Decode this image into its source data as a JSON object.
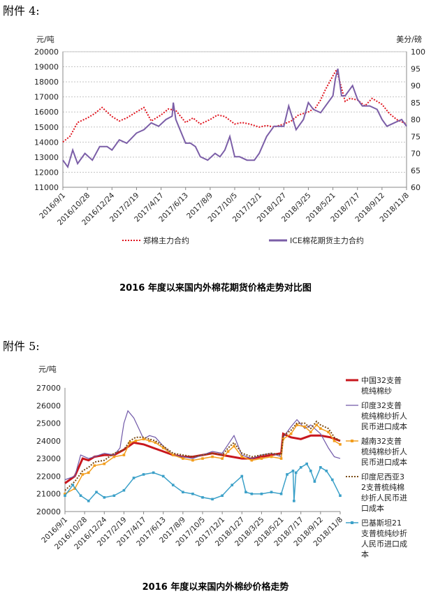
{
  "attachment4": {
    "label": "附件 4:",
    "caption": "2016 年度以来国内外棉花期货价格走势对比图"
  },
  "attachment5": {
    "label": "附件 5:",
    "caption": "2016 年度以来国内外棉纱价格走势"
  },
  "chart_data": [
    {
      "type": "line",
      "y_unit_left": "元/吨",
      "y_unit_right": "美分/磅",
      "ylim_left": [
        11000,
        20000
      ],
      "yticks_left": [
        11000,
        12000,
        13000,
        14000,
        15000,
        16000,
        17000,
        18000,
        19000,
        20000
      ],
      "ylim_right": [
        60,
        100
      ],
      "yticks_right": [
        60,
        65,
        70,
        75,
        80,
        85,
        90,
        95,
        100
      ],
      "categories": [
        "2016/9/1",
        "2016/10/28",
        "2016/12/24",
        "2017/2/19",
        "2017/4/17",
        "2017/6/13",
        "2017/8/9",
        "2017/10/5",
        "2017/12/1",
        "2018/1/27",
        "2018/3/25",
        "2018/5/21",
        "2018/7/17",
        "2018/9/12",
        "2018/11/8"
      ],
      "grid": true,
      "legend_position": "bottom",
      "series": [
        {
          "name": "郑棉主力合约",
          "axis": "left",
          "color": "#e0141e",
          "style": "dotted",
          "x": [
            0,
            0.3,
            0.6,
            1,
            1.3,
            1.6,
            2,
            2.3,
            2.6,
            3,
            3.3,
            3.6,
            4,
            4.3,
            4.6,
            5,
            5.3,
            5.6,
            6,
            6.3,
            6.6,
            7,
            7.3,
            7.6,
            8,
            8.3,
            8.6,
            9,
            9.3,
            9.6,
            10,
            10.3,
            10.5,
            10.7,
            11,
            11.15,
            11.3,
            11.5,
            11.7,
            12,
            12.3,
            12.6,
            13,
            13.3,
            13.6,
            14
          ],
          "values": [
            14000,
            14400,
            15300,
            15600,
            15900,
            16300,
            15700,
            15400,
            15600,
            16000,
            16300,
            15400,
            15800,
            16200,
            16100,
            15300,
            15600,
            15200,
            15500,
            15800,
            15700,
            15200,
            15300,
            15200,
            15000,
            15100,
            15000,
            15200,
            15400,
            15800,
            16000,
            16300,
            16800,
            17500,
            18400,
            18800,
            17900,
            16700,
            16900,
            16800,
            16400,
            16900,
            16500,
            15900,
            15500,
            15200
          ]
        },
        {
          "name": "ICE棉花期货主力合约",
          "axis": "right",
          "color": "#7b5ea7",
          "style": "solid",
          "x": [
            0,
            0.2,
            0.4,
            0.6,
            0.9,
            1.2,
            1.5,
            1.8,
            2,
            2.3,
            2.6,
            3,
            3.3,
            3.6,
            3.9,
            4.2,
            4.45,
            4.5,
            4.6,
            5,
            5.2,
            5.4,
            5.6,
            5.9,
            6.2,
            6.4,
            6.6,
            6.8,
            7,
            7.2,
            7.5,
            7.8,
            8,
            8.3,
            8.6,
            9,
            9.2,
            9.5,
            9.8,
            10,
            10.2,
            10.5,
            10.8,
            11,
            11.1,
            11.2,
            11.35,
            11.5,
            11.8,
            12,
            12.2,
            12.5,
            12.8,
            13,
            13.2,
            13.5,
            13.8,
            14
          ],
          "values": [
            68,
            66,
            71,
            67,
            70,
            68,
            72,
            72,
            71,
            74,
            73,
            76,
            77,
            79,
            78,
            80,
            81,
            85,
            80,
            73,
            73,
            72,
            69,
            68,
            70,
            69,
            71,
            75,
            69,
            69,
            68,
            68,
            70,
            75,
            78,
            78,
            84,
            77,
            80,
            85,
            83,
            82,
            85,
            87,
            92,
            95,
            87,
            87,
            90,
            86,
            84,
            84,
            83,
            80,
            78,
            79,
            80,
            78
          ]
        }
      ]
    },
    {
      "type": "line",
      "y_unit_left": "元/吨",
      "ylim_left": [
        20000,
        27000
      ],
      "yticks_left": [
        20000,
        21000,
        22000,
        23000,
        24000,
        25000,
        26000,
        27000
      ],
      "categories": [
        "2016/9/1",
        "2016/10/28",
        "2016/12/24",
        "2017/2/19",
        "2017/4/17",
        "2017/6/13",
        "2017/8/9",
        "2017/10/5",
        "2017/12/1",
        "2018/1/27",
        "2018/3/25",
        "2018/5/21",
        "2018/7/17",
        "2018/9/12",
        "2018/11/8"
      ],
      "grid": false,
      "legend_position": "right",
      "series": [
        {
          "name": "中国32支普梳纯棉纱",
          "color": "#c8161d",
          "style": "solid-thick",
          "x": [
            0,
            0.5,
            0.9,
            1.2,
            1.5,
            2,
            2.5,
            3,
            3.5,
            4,
            4.5,
            5,
            5.5,
            6,
            6.5,
            7,
            7.5,
            8,
            8.5,
            9,
            9.5,
            10,
            10.5,
            11,
            11.1,
            11.5,
            12,
            12.5,
            13,
            13.5,
            14
          ],
          "values": [
            21600,
            22000,
            23000,
            22900,
            23100,
            23200,
            23200,
            23500,
            23900,
            23800,
            23600,
            23400,
            23200,
            23100,
            23100,
            23200,
            23300,
            23200,
            23100,
            23000,
            23000,
            23100,
            23200,
            23300,
            24400,
            24200,
            24100,
            24300,
            24300,
            24200,
            24000
          ]
        },
        {
          "name": "印度32支普梳纯棉纱折人民币进口成本",
          "color": "#7058a8",
          "style": "solid-thin",
          "x": [
            0,
            0.5,
            0.8,
            1.2,
            1.5,
            2,
            2.5,
            2.8,
            3,
            3.2,
            3.5,
            3.8,
            4,
            4.3,
            4.6,
            5,
            5.5,
            6,
            6.5,
            7,
            7.5,
            8,
            8.3,
            8.6,
            9,
            9.5,
            10,
            10.5,
            11,
            11.1,
            11.5,
            11.8,
            12.2,
            12.5,
            12.8,
            13,
            13.4,
            13.7,
            14
          ],
          "values": [
            21800,
            22000,
            23200,
            23000,
            23100,
            23300,
            23200,
            23600,
            25000,
            25700,
            25300,
            24600,
            24100,
            24300,
            24200,
            23700,
            23200,
            23100,
            23000,
            23200,
            23400,
            23300,
            23800,
            24300,
            23200,
            23000,
            23200,
            23300,
            23100,
            24200,
            24800,
            25200,
            24700,
            24900,
            24600,
            24400,
            23600,
            23100,
            23000
          ]
        },
        {
          "name": "越南32支普梳纯棉纱折人民币进口成本",
          "color": "#f29d1d",
          "style": "solid-marker",
          "x": [
            0,
            0.5,
            0.9,
            1.2,
            1.5,
            2,
            2.5,
            3,
            3.3,
            3.6,
            4,
            4.3,
            4.6,
            5,
            5.5,
            6,
            6.5,
            7,
            7.5,
            8,
            8.3,
            8.6,
            9,
            9.5,
            10,
            10.5,
            11,
            11.1,
            11.5,
            11.8,
            12.2,
            12.5,
            12.8,
            13,
            13.4,
            13.7,
            14
          ],
          "values": [
            21000,
            21300,
            22100,
            22200,
            22600,
            22700,
            23100,
            23200,
            23900,
            24000,
            24100,
            24000,
            23900,
            23600,
            23200,
            23000,
            22900,
            23000,
            23100,
            23000,
            23400,
            23700,
            23100,
            22900,
            23000,
            23100,
            23000,
            24100,
            24400,
            24900,
            24800,
            24500,
            24900,
            24700,
            24500,
            24000,
            23800
          ]
        },
        {
          "name": "印度尼西亚32支普梳纯棉纱折人民币进口成本",
          "color": "#7a4a14",
          "style": "dotted",
          "x": [
            0,
            0.5,
            0.9,
            1.2,
            1.5,
            2,
            2.5,
            3,
            3.3,
            3.6,
            4,
            4.3,
            4.6,
            5,
            5.5,
            6,
            6.5,
            7,
            7.5,
            8,
            8.3,
            8.6,
            9,
            9.5,
            10,
            10.5,
            11,
            11.1,
            11.5,
            11.8,
            12.2,
            12.5,
            12.8,
            13,
            13.4,
            13.7,
            14
          ],
          "values": [
            21200,
            21700,
            22300,
            22500,
            22800,
            22900,
            23300,
            23500,
            24000,
            24200,
            24200,
            24100,
            24000,
            23700,
            23300,
            23200,
            23100,
            23200,
            23300,
            23200,
            23600,
            23900,
            23300,
            23100,
            23200,
            23300,
            23200,
            24300,
            24600,
            25000,
            25000,
            24700,
            25100,
            24900,
            24700,
            24200,
            24000
          ]
        },
        {
          "name": "巴基斯坦21支普梳纯纱折人民币进口成本",
          "color": "#3ba0c8",
          "style": "solid-marker",
          "x": [
            0,
            0.4,
            0.8,
            1.2,
            1.6,
            2,
            2.5,
            3,
            3.5,
            4,
            4.5,
            5,
            5.5,
            6,
            6.5,
            7,
            7.5,
            8,
            8.5,
            9,
            9.2,
            9.5,
            10,
            10.5,
            11,
            11.3,
            11.6,
            11.65,
            11.75,
            12,
            12.3,
            12.5,
            12.7,
            13,
            13.3,
            13.6,
            14
          ],
          "values": [
            20900,
            21500,
            20900,
            20600,
            21100,
            20800,
            20900,
            21200,
            21900,
            22100,
            22200,
            22000,
            21500,
            21100,
            21000,
            20800,
            20700,
            20900,
            21500,
            22000,
            21100,
            21000,
            21000,
            21100,
            21000,
            22100,
            22300,
            20600,
            22200,
            22500,
            22700,
            22300,
            21700,
            22500,
            22300,
            21800,
            20900
          ]
        }
      ]
    }
  ]
}
